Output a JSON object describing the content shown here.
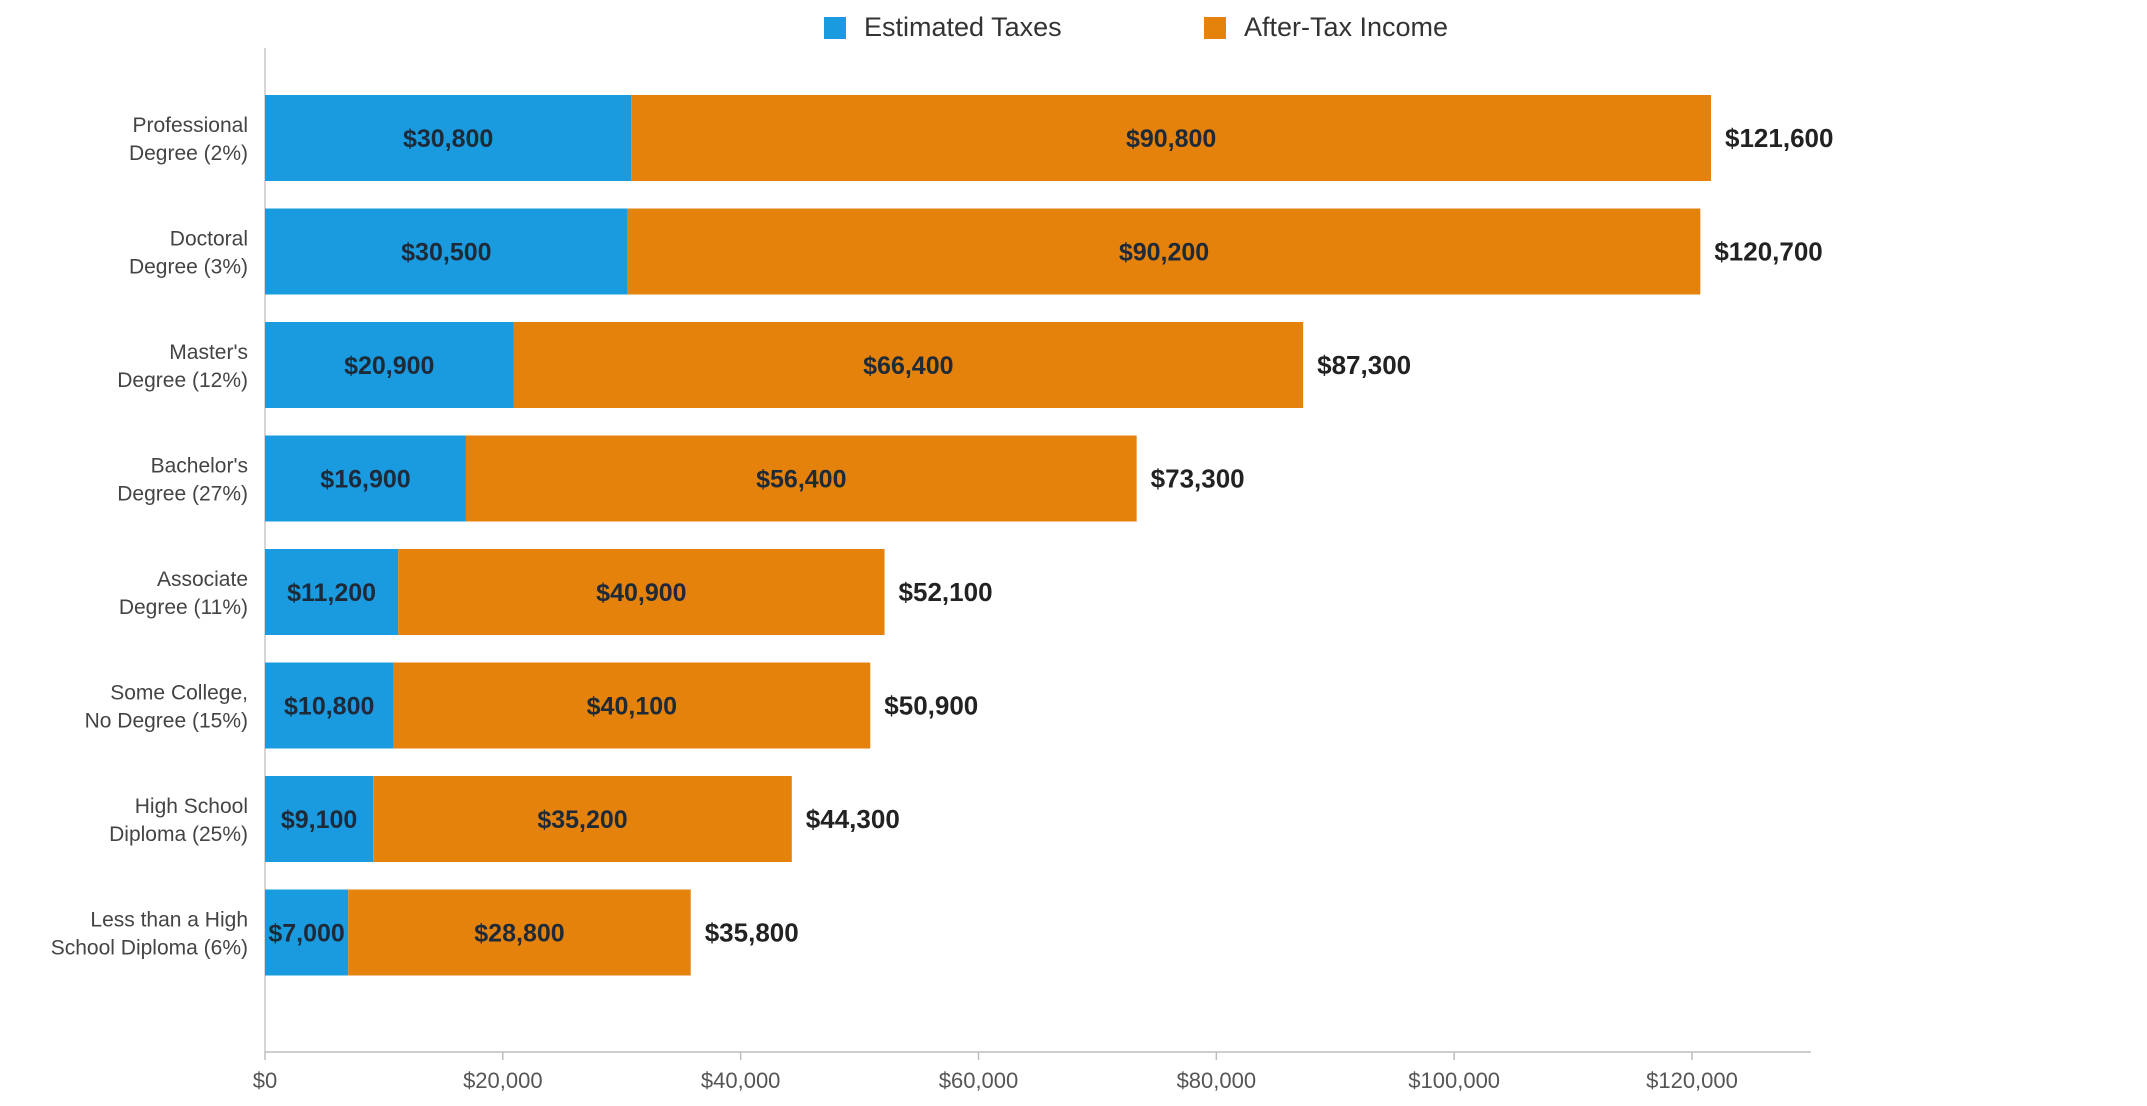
{
  "chart_data": {
    "type": "bar",
    "orientation": "horizontal",
    "stacked": true,
    "title": "",
    "xlabel": "",
    "ylabel": "",
    "xlim": [
      0,
      130000
    ],
    "x_ticks": [
      0,
      20000,
      40000,
      60000,
      80000,
      100000,
      120000
    ],
    "x_tick_labels": [
      "$0",
      "$20,000",
      "$40,000",
      "$60,000",
      "$80,000",
      "$100,000",
      "$120,000"
    ],
    "grid": false,
    "legend_position": "top-center",
    "categories": [
      [
        "Professional",
        "Degree (2%)"
      ],
      [
        "Doctoral",
        "Degree (3%)"
      ],
      [
        "Master's",
        "Degree (12%)"
      ],
      [
        "Bachelor's",
        "Degree (27%)"
      ],
      [
        "Associate",
        "Degree (11%)"
      ],
      [
        "Some College,",
        "No Degree (15%)"
      ],
      [
        "High School",
        "Diploma (25%)"
      ],
      [
        "Less than a High",
        "School Diploma (6%)"
      ]
    ],
    "series": [
      {
        "name": "Estimated Taxes",
        "color": "#1a9be0",
        "values": [
          30800,
          30500,
          20900,
          16900,
          11200,
          10800,
          9100,
          7000
        ],
        "labels": [
          "$30,800",
          "$30,500",
          "$20,900",
          "$16,900",
          "$11,200",
          "$10,800",
          "$9,100",
          "$7,000"
        ]
      },
      {
        "name": "After-Tax Income",
        "color": "#e5820c",
        "values": [
          90800,
          90200,
          66400,
          56400,
          40900,
          40100,
          35200,
          28800
        ],
        "labels": [
          "$90,800",
          "$90,200",
          "$66,400",
          "$56,400",
          "$40,900",
          "$40,100",
          "$35,200",
          "$28,800"
        ]
      }
    ],
    "totals": [
      121600,
      120700,
      87300,
      73300,
      52100,
      50900,
      44300,
      35800
    ],
    "total_labels": [
      "$121,600",
      "$120,700",
      "$87,300",
      "$73,300",
      "$52,100",
      "$50,900",
      "$44,300",
      "$35,800"
    ]
  }
}
